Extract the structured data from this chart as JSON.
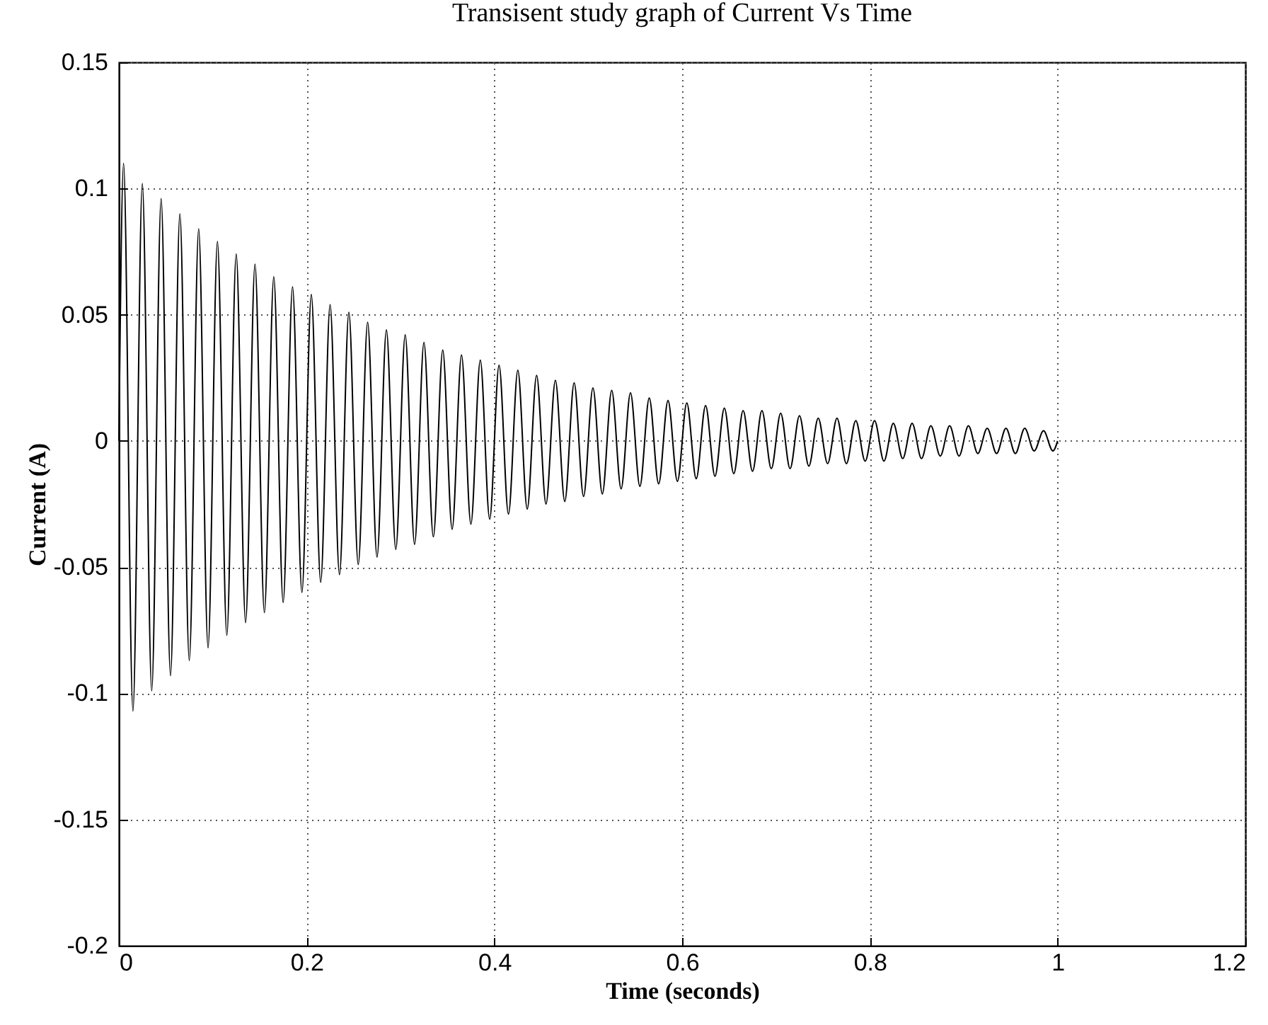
{
  "chart_data": {
    "type": "line",
    "title": "Transisent study graph of Current Vs Time",
    "xlabel": "Time (seconds)",
    "ylabel": "Current (A)",
    "x": [
      0,
      0.005,
      0.015,
      0.025,
      0.035,
      0.045,
      0.055,
      0.065,
      0.075,
      0.085,
      0.095,
      0.105,
      0.115,
      0.125,
      0.135,
      0.145,
      0.155,
      0.165,
      0.175,
      0.185,
      0.195,
      0.205,
      0.215,
      0.225,
      0.235,
      0.245,
      0.255,
      0.265,
      0.275,
      0.285,
      0.295,
      0.305,
      0.315,
      0.325,
      0.335,
      0.345,
      0.355,
      0.365,
      0.375,
      0.385,
      0.395,
      0.405,
      0.415,
      0.425,
      0.435,
      0.445,
      0.455,
      0.465,
      0.475,
      0.485,
      0.495,
      0.505,
      0.515,
      0.525,
      0.535,
      0.545,
      0.555,
      0.565,
      0.575,
      0.585,
      0.595,
      0.605,
      0.615,
      0.625,
      0.635,
      0.645,
      0.655,
      0.665,
      0.675,
      0.685,
      0.695,
      0.705,
      0.715,
      0.725,
      0.735,
      0.745,
      0.755,
      0.765,
      0.775,
      0.785,
      0.795,
      0.805,
      0.815,
      0.825,
      0.835,
      0.845,
      0.855,
      0.865,
      0.875,
      0.885,
      0.895,
      0.905,
      0.915,
      0.925,
      0.935,
      0.945,
      0.955,
      0.965,
      0.975,
      0.985,
      0.995,
      1
    ],
    "series": [
      {
        "color": "#000000",
        "values": [
          0,
          0.11,
          -0.107,
          0.102,
          -0.099,
          0.096,
          -0.093,
          0.09,
          -0.087,
          0.084,
          -0.082,
          0.079,
          -0.077,
          0.074,
          -0.072,
          0.07,
          -0.068,
          0.065,
          -0.064,
          0.061,
          -0.06,
          0.058,
          -0.056,
          0.054,
          -0.053,
          0.051,
          -0.049,
          0.047,
          -0.046,
          0.044,
          -0.043,
          0.042,
          -0.041,
          0.039,
          -0.038,
          0.036,
          -0.035,
          0.034,
          -0.033,
          0.032,
          -0.031,
          0.03,
          -0.029,
          0.028,
          -0.027,
          0.026,
          -0.025,
          0.024,
          -0.024,
          0.023,
          -0.022,
          0.021,
          -0.021,
          0.02,
          -0.019,
          0.019,
          -0.018,
          0.017,
          -0.017,
          0.016,
          -0.016,
          0.015,
          -0.015,
          0.014,
          -0.014,
          0.013,
          -0.013,
          0.012,
          -0.012,
          0.012,
          -0.011,
          0.011,
          -0.011,
          0.01,
          -0.01,
          0.009,
          -0.009,
          0.009,
          -0.009,
          0.008,
          -0.008,
          0.008,
          -0.008,
          0.007,
          -0.007,
          0.007,
          -0.007,
          0.006,
          -0.006,
          0.006,
          -0.006,
          0.006,
          -0.005,
          0.005,
          -0.005,
          0.005,
          -0.005,
          0.005,
          -0.004,
          0.004,
          -0.004,
          0
        ]
      }
    ],
    "xlim": [
      0,
      1.2
    ],
    "xticks": [
      0,
      0.2,
      0.4,
      0.6,
      0.8,
      1,
      1.2
    ],
    "ylim": [
      -0.2,
      0.15
    ],
    "yticks": [
      -0.2,
      -0.15,
      -0.1,
      -0.05,
      0,
      0.05,
      0.1,
      0.15
    ],
    "grid": true,
    "marker": "none",
    "line_style": "solid"
  }
}
